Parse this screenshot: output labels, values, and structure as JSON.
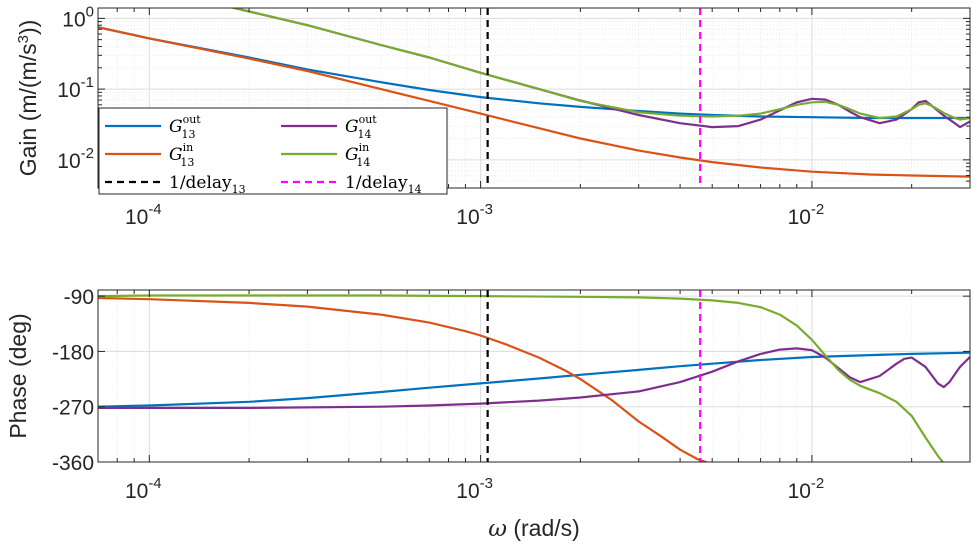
{
  "chart_data": [
    {
      "type": "line",
      "panel": "gain",
      "ylabel_text": "Gain (m/(m/s",
      "ylabel_sup": "3",
      "ylabel_close": "))",
      "xlim": [
        7e-05,
        0.03
      ],
      "ylim": [
        0.004,
        1.4
      ],
      "yscale": "log",
      "xscale": "log",
      "xticks": [
        0.0001,
        0.001,
        0.01
      ],
      "xtick_labels": [
        {
          "base": "10",
          "exp": "-4"
        },
        {
          "base": "10",
          "exp": "-3"
        },
        {
          "base": "10",
          "exp": "-2"
        }
      ],
      "yticks": [
        0.01,
        0.1,
        1
      ],
      "ytick_labels": [
        {
          "base": "10",
          "exp": "-2"
        },
        {
          "base": "10",
          "exp": "-1"
        },
        {
          "base": "10",
          "exp": "0"
        }
      ],
      "series": [
        {
          "name": "G13_out",
          "color": "#0072BD",
          "x": [
            7e-05,
            0.0001,
            0.0002,
            0.0003,
            0.0005,
            0.0007,
            0.001,
            0.0015,
            0.002,
            0.003,
            0.004,
            0.005,
            0.007,
            0.01,
            0.015,
            0.02,
            0.03
          ],
          "y": [
            0.75,
            0.52,
            0.28,
            0.19,
            0.125,
            0.097,
            0.077,
            0.063,
            0.056,
            0.049,
            0.045,
            0.043,
            0.041,
            0.04,
            0.039,
            0.039,
            0.039
          ]
        },
        {
          "name": "G13_in",
          "color": "#D95319",
          "x": [
            7e-05,
            0.0001,
            0.0002,
            0.0003,
            0.0005,
            0.0007,
            0.001,
            0.0015,
            0.002,
            0.003,
            0.004,
            0.005,
            0.007,
            0.01,
            0.015,
            0.02,
            0.03
          ],
          "y": [
            0.75,
            0.52,
            0.27,
            0.18,
            0.1,
            0.068,
            0.045,
            0.028,
            0.02,
            0.0135,
            0.0108,
            0.0093,
            0.0078,
            0.0068,
            0.0062,
            0.006,
            0.0058
          ]
        },
        {
          "name": "G14_out",
          "color": "#7E2F8E",
          "x": [
            0.00017,
            0.0002,
            0.0003,
            0.0005,
            0.0007,
            0.001,
            0.0015,
            0.002,
            0.003,
            0.004,
            0.005,
            0.006,
            0.007,
            0.008,
            0.009,
            0.01,
            0.011,
            0.012,
            0.013,
            0.014,
            0.016,
            0.018,
            0.02,
            0.021,
            0.022,
            0.023,
            0.025,
            0.027,
            0.028,
            0.03
          ],
          "y": [
            1.5,
            1.25,
            0.8,
            0.42,
            0.28,
            0.17,
            0.1,
            0.069,
            0.043,
            0.033,
            0.029,
            0.03,
            0.037,
            0.05,
            0.065,
            0.073,
            0.071,
            0.06,
            0.048,
            0.04,
            0.033,
            0.037,
            0.052,
            0.065,
            0.068,
            0.058,
            0.042,
            0.033,
            0.029,
            0.035
          ]
        },
        {
          "name": "G14_in",
          "color": "#77AC30",
          "x": [
            0.00017,
            0.0002,
            0.0003,
            0.0005,
            0.0007,
            0.001,
            0.0015,
            0.002,
            0.003,
            0.004,
            0.005,
            0.006,
            0.007,
            0.008,
            0.009,
            0.01,
            0.011,
            0.012,
            0.013,
            0.014,
            0.016,
            0.018,
            0.02,
            0.021,
            0.022,
            0.023,
            0.025,
            0.027,
            0.028,
            0.03
          ],
          "y": [
            1.5,
            1.25,
            0.8,
            0.42,
            0.28,
            0.17,
            0.1,
            0.068,
            0.047,
            0.042,
            0.041,
            0.042,
            0.045,
            0.052,
            0.06,
            0.065,
            0.066,
            0.06,
            0.052,
            0.045,
            0.039,
            0.041,
            0.052,
            0.06,
            0.063,
            0.058,
            0.046,
            0.039,
            0.037,
            0.039
          ]
        }
      ],
      "vlines": [
        {
          "name": "delay13",
          "x": 0.00105,
          "color": "#000000"
        },
        {
          "name": "delay14",
          "x": 0.0046,
          "color": "#FF00FF"
        }
      ],
      "legend": {
        "position": "lower-left",
        "entries": [
          {
            "series": "G13_out",
            "main": "G",
            "sub": "13",
            "sup": "out"
          },
          {
            "series": "G14_out",
            "main": "G",
            "sub": "14",
            "sup": "out"
          },
          {
            "series": "G13_in",
            "main": "G",
            "sub": "13",
            "sup": "in"
          },
          {
            "series": "G14_in",
            "main": "G",
            "sub": "14",
            "sup": "in"
          },
          {
            "series": "delay13",
            "main": "1/delay",
            "sub": "13",
            "sup": ""
          },
          {
            "series": "delay14",
            "main": "1/delay",
            "sub": "14",
            "sup": ""
          }
        ]
      },
      "grid": true
    },
    {
      "type": "line",
      "panel": "phase",
      "ylabel": "Phase (deg)",
      "xlabel_symbol": "ω",
      "xlabel_units": " (rad/s)",
      "xlim": [
        7e-05,
        0.03
      ],
      "ylim": [
        -360,
        -80
      ],
      "xscale": "log",
      "xticks": [
        0.0001,
        0.001,
        0.01
      ],
      "xtick_labels": [
        {
          "base": "10",
          "exp": "-4"
        },
        {
          "base": "10",
          "exp": "-3"
        },
        {
          "base": "10",
          "exp": "-2"
        }
      ],
      "yticks": [
        -90,
        -180,
        -270,
        -360
      ],
      "ytick_labels": [
        "-90",
        "-180",
        "-270",
        "-360"
      ],
      "series": [
        {
          "name": "G13_out",
          "color": "#0072BD",
          "x": [
            7e-05,
            0.0001,
            0.0002,
            0.0003,
            0.0005,
            0.0007,
            0.001,
            0.0015,
            0.002,
            0.003,
            0.004,
            0.005,
            0.007,
            0.01,
            0.015,
            0.02,
            0.03
          ],
          "y": [
            -270,
            -268,
            -262,
            -256,
            -246,
            -239,
            -232,
            -224,
            -218,
            -210,
            -204,
            -200,
            -194,
            -189,
            -186,
            -184,
            -182
          ]
        },
        {
          "name": "G13_in",
          "color": "#D95319",
          "x": [
            7e-05,
            0.0001,
            0.0002,
            0.0003,
            0.0005,
            0.0007,
            0.0009,
            0.001,
            0.0012,
            0.0015,
            0.0018,
            0.002,
            0.0025,
            0.003,
            0.0035,
            0.004,
            0.0045,
            0.0049
          ],
          "y": [
            -93,
            -95,
            -101,
            -107,
            -120,
            -133,
            -147,
            -154,
            -169,
            -190,
            -211,
            -225,
            -260,
            -294,
            -318,
            -340,
            -355,
            -362
          ]
        },
        {
          "name": "G14_out",
          "color": "#7E2F8E",
          "x": [
            7e-05,
            0.0001,
            0.0002,
            0.0005,
            0.0007,
            0.001,
            0.0015,
            0.002,
            0.003,
            0.004,
            0.005,
            0.006,
            0.007,
            0.008,
            0.009,
            0.01,
            0.011,
            0.012,
            0.013,
            0.014,
            0.016,
            0.018,
            0.019,
            0.02,
            0.022,
            0.024,
            0.025,
            0.026,
            0.028,
            0.03
          ],
          "y": [
            -272,
            -272,
            -272,
            -270,
            -268,
            -265,
            -260,
            -255,
            -245,
            -230,
            -213,
            -196,
            -184,
            -177,
            -175,
            -178,
            -190,
            -207,
            -222,
            -230,
            -220,
            -200,
            -192,
            -190,
            -205,
            -232,
            -238,
            -230,
            -205,
            -189
          ]
        },
        {
          "name": "G14_in",
          "color": "#77AC30",
          "x": [
            7e-05,
            0.0001,
            0.0002,
            0.0005,
            0.001,
            0.002,
            0.003,
            0.004,
            0.005,
            0.006,
            0.007,
            0.008,
            0.009,
            0.01,
            0.011,
            0.012,
            0.013,
            0.014,
            0.016,
            0.018,
            0.02,
            0.022,
            0.024,
            0.025
          ],
          "y": [
            -90,
            -89,
            -89,
            -89,
            -90,
            -91,
            -92,
            -94,
            -97,
            -101,
            -108,
            -120,
            -138,
            -161,
            -187,
            -210,
            -226,
            -236,
            -248,
            -262,
            -285,
            -320,
            -350,
            -362
          ]
        }
      ],
      "vlines": [
        {
          "name": "delay13",
          "x": 0.00105,
          "color": "#000000"
        },
        {
          "name": "delay14",
          "x": 0.0046,
          "color": "#FF00FF"
        }
      ],
      "grid": true
    }
  ]
}
